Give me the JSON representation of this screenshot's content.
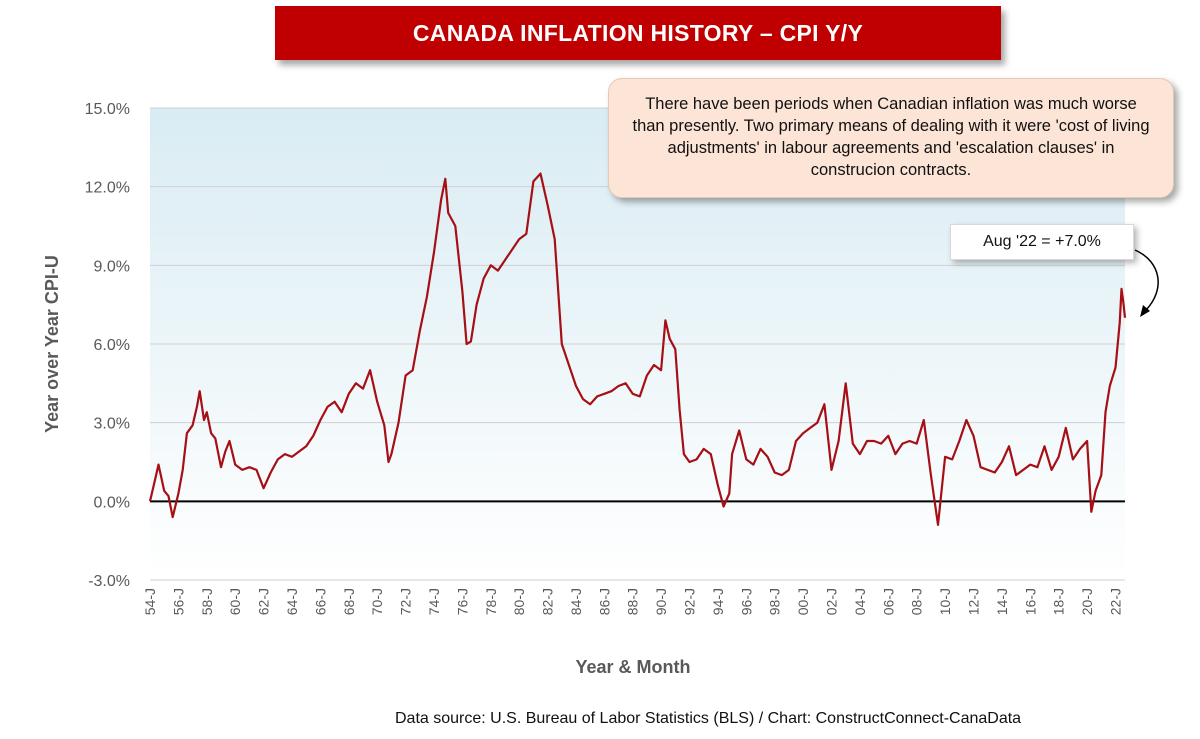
{
  "title": "CANADA INFLATION HISTORY – CPI Y/Y",
  "callout_text": "There have been periods when Canadian inflation was much worse than presently. Two primary means of dealing with it were 'cost of living adjustments' in labour agreements and 'escalation clauses' in construcion contracts.",
  "value_callout": "Aug '22 = +7.0%",
  "source": "Data source: U.S. Bureau of Labor Statistics (BLS) / Chart: ConstructConnect-CanaData",
  "colors": {
    "line": "#a50f15",
    "banner": "#c00000",
    "callout_bg": "#fce4d6"
  },
  "chart_data": {
    "type": "line",
    "xlabel": "Year & Month",
    "ylabel": "Year over Year CPI-U",
    "ylim": [
      -3,
      15
    ],
    "y_ticks": [
      "-3.0%",
      "0.0%",
      "3.0%",
      "6.0%",
      "9.0%",
      "12.0%",
      "15.0%"
    ],
    "x_tick_labels": [
      "54-J",
      "56-J",
      "58-J",
      "60-J",
      "62-J",
      "64-J",
      "66-J",
      "68-J",
      "70-J",
      "72-J",
      "74-J",
      "76-J",
      "78-J",
      "80-J",
      "82-J",
      "84-J",
      "86-J",
      "88-J",
      "90-J",
      "92-J",
      "94-J",
      "96-J",
      "98-J",
      "00-J",
      "02-J",
      "04-J",
      "06-J",
      "08-J",
      "10-J",
      "12-J",
      "14-J",
      "16-J",
      "18-J",
      "20-J",
      "22-J"
    ],
    "x_range": [
      1954.0,
      2022.67
    ],
    "gridlines": true,
    "series": [
      {
        "points": [
          [
            1954.0,
            0.0
          ],
          [
            1954.3,
            0.7
          ],
          [
            1954.6,
            1.4
          ],
          [
            1955.0,
            0.4
          ],
          [
            1955.3,
            0.2
          ],
          [
            1955.6,
            -0.6
          ],
          [
            1956.0,
            0.3
          ],
          [
            1956.3,
            1.2
          ],
          [
            1956.6,
            2.6
          ],
          [
            1957.0,
            2.9
          ],
          [
            1957.3,
            3.6
          ],
          [
            1957.5,
            4.2
          ],
          [
            1957.8,
            3.1
          ],
          [
            1958.0,
            3.4
          ],
          [
            1958.3,
            2.6
          ],
          [
            1958.6,
            2.4
          ],
          [
            1959.0,
            1.3
          ],
          [
            1959.3,
            1.9
          ],
          [
            1959.6,
            2.3
          ],
          [
            1960.0,
            1.4
          ],
          [
            1960.5,
            1.2
          ],
          [
            1961.0,
            1.3
          ],
          [
            1961.5,
            1.2
          ],
          [
            1962.0,
            0.5
          ],
          [
            1962.5,
            1.1
          ],
          [
            1963.0,
            1.6
          ],
          [
            1963.5,
            1.8
          ],
          [
            1964.0,
            1.7
          ],
          [
            1964.5,
            1.9
          ],
          [
            1965.0,
            2.1
          ],
          [
            1965.5,
            2.5
          ],
          [
            1966.0,
            3.1
          ],
          [
            1966.5,
            3.6
          ],
          [
            1967.0,
            3.8
          ],
          [
            1967.5,
            3.4
          ],
          [
            1968.0,
            4.1
          ],
          [
            1968.5,
            4.5
          ],
          [
            1969.0,
            4.3
          ],
          [
            1969.5,
            5.0
          ],
          [
            1970.0,
            3.8
          ],
          [
            1970.5,
            2.9
          ],
          [
            1970.8,
            1.5
          ],
          [
            1971.0,
            1.8
          ],
          [
            1971.5,
            3.0
          ],
          [
            1972.0,
            4.8
          ],
          [
            1972.5,
            5.0
          ],
          [
            1973.0,
            6.5
          ],
          [
            1973.5,
            7.8
          ],
          [
            1974.0,
            9.5
          ],
          [
            1974.5,
            11.5
          ],
          [
            1974.8,
            12.3
          ],
          [
            1975.0,
            11.0
          ],
          [
            1975.5,
            10.5
          ],
          [
            1976.0,
            8.0
          ],
          [
            1976.3,
            6.0
          ],
          [
            1976.6,
            6.1
          ],
          [
            1977.0,
            7.5
          ],
          [
            1977.5,
            8.5
          ],
          [
            1978.0,
            9.0
          ],
          [
            1978.5,
            8.8
          ],
          [
            1979.0,
            9.2
          ],
          [
            1979.5,
            9.6
          ],
          [
            1980.0,
            10.0
          ],
          [
            1980.5,
            10.2
          ],
          [
            1981.0,
            12.2
          ],
          [
            1981.5,
            12.5
          ],
          [
            1982.0,
            11.3
          ],
          [
            1982.5,
            10.0
          ],
          [
            1983.0,
            6.0
          ],
          [
            1983.5,
            5.2
          ],
          [
            1984.0,
            4.4
          ],
          [
            1984.5,
            3.9
          ],
          [
            1985.0,
            3.7
          ],
          [
            1985.5,
            4.0
          ],
          [
            1986.0,
            4.1
          ],
          [
            1986.5,
            4.2
          ],
          [
            1987.0,
            4.4
          ],
          [
            1987.5,
            4.5
          ],
          [
            1988.0,
            4.1
          ],
          [
            1988.5,
            4.0
          ],
          [
            1989.0,
            4.8
          ],
          [
            1989.5,
            5.2
          ],
          [
            1990.0,
            5.0
          ],
          [
            1990.3,
            6.9
          ],
          [
            1990.6,
            6.2
          ],
          [
            1991.0,
            5.8
          ],
          [
            1991.3,
            3.5
          ],
          [
            1991.6,
            1.8
          ],
          [
            1992.0,
            1.5
          ],
          [
            1992.5,
            1.6
          ],
          [
            1993.0,
            2.0
          ],
          [
            1993.5,
            1.8
          ],
          [
            1994.0,
            0.6
          ],
          [
            1994.4,
            -0.2
          ],
          [
            1994.8,
            0.3
          ],
          [
            1995.0,
            1.8
          ],
          [
            1995.5,
            2.7
          ],
          [
            1996.0,
            1.6
          ],
          [
            1996.5,
            1.4
          ],
          [
            1997.0,
            2.0
          ],
          [
            1997.5,
            1.7
          ],
          [
            1998.0,
            1.1
          ],
          [
            1998.5,
            1.0
          ],
          [
            1999.0,
            1.2
          ],
          [
            1999.5,
            2.3
          ],
          [
            2000.0,
            2.6
          ],
          [
            2000.5,
            2.8
          ],
          [
            2001.0,
            3.0
          ],
          [
            2001.5,
            3.7
          ],
          [
            2002.0,
            1.2
          ],
          [
            2002.5,
            2.3
          ],
          [
            2003.0,
            4.5
          ],
          [
            2003.5,
            2.2
          ],
          [
            2004.0,
            1.8
          ],
          [
            2004.5,
            2.3
          ],
          [
            2005.0,
            2.3
          ],
          [
            2005.5,
            2.2
          ],
          [
            2006.0,
            2.5
          ],
          [
            2006.5,
            1.8
          ],
          [
            2007.0,
            2.2
          ],
          [
            2007.5,
            2.3
          ],
          [
            2008.0,
            2.2
          ],
          [
            2008.5,
            3.1
          ],
          [
            2009.0,
            1.0
          ],
          [
            2009.5,
            -0.9
          ],
          [
            2010.0,
            1.7
          ],
          [
            2010.5,
            1.6
          ],
          [
            2011.0,
            2.3
          ],
          [
            2011.5,
            3.1
          ],
          [
            2012.0,
            2.5
          ],
          [
            2012.5,
            1.3
          ],
          [
            2013.0,
            1.2
          ],
          [
            2013.5,
            1.1
          ],
          [
            2014.0,
            1.5
          ],
          [
            2014.5,
            2.1
          ],
          [
            2015.0,
            1.0
          ],
          [
            2015.5,
            1.2
          ],
          [
            2016.0,
            1.4
          ],
          [
            2016.5,
            1.3
          ],
          [
            2017.0,
            2.1
          ],
          [
            2017.5,
            1.2
          ],
          [
            2018.0,
            1.7
          ],
          [
            2018.5,
            2.8
          ],
          [
            2019.0,
            1.6
          ],
          [
            2019.5,
            2.0
          ],
          [
            2020.0,
            2.3
          ],
          [
            2020.3,
            -0.4
          ],
          [
            2020.6,
            0.4
          ],
          [
            2021.0,
            1.0
          ],
          [
            2021.3,
            3.4
          ],
          [
            2021.6,
            4.4
          ],
          [
            2022.0,
            5.1
          ],
          [
            2022.3,
            6.8
          ],
          [
            2022.42,
            8.1
          ],
          [
            2022.55,
            7.6
          ],
          [
            2022.67,
            7.0
          ]
        ]
      }
    ]
  }
}
